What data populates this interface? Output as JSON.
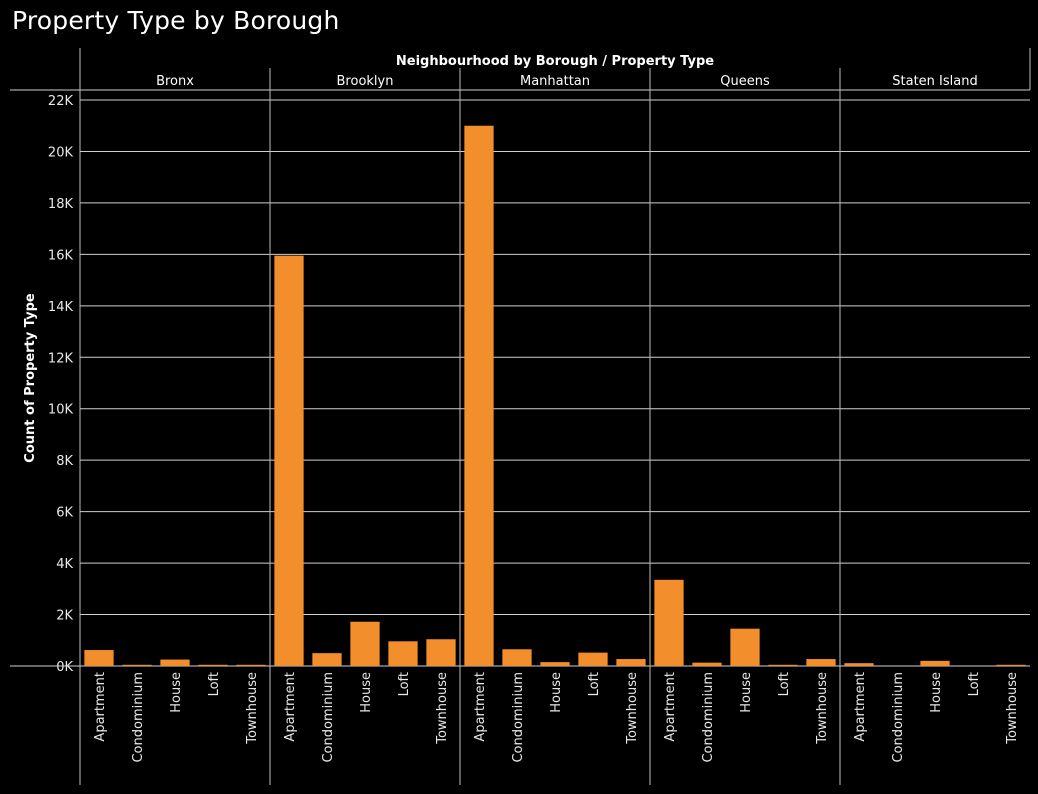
{
  "page": {
    "title": "Property Type by Borough"
  },
  "chart_data": {
    "type": "bar",
    "title": "Property Type by Borough",
    "column_header": "Neighbourhood by Borough  /  Property Type",
    "ylabel": "Count of Property Type",
    "ylim": [
      0,
      22000
    ],
    "yticks": [
      0,
      2000,
      4000,
      6000,
      8000,
      10000,
      12000,
      14000,
      16000,
      18000,
      20000,
      22000
    ],
    "ytick_labels": [
      "0K",
      "2K",
      "4K",
      "6K",
      "8K",
      "10K",
      "12K",
      "14K",
      "16K",
      "18K",
      "20K",
      "22K"
    ],
    "bar_color": "#f28e2b",
    "grid": true,
    "categories": [
      "Apartment",
      "Condominium",
      "House",
      "Loft",
      "Townhouse"
    ],
    "groups": [
      {
        "name": "Bronx",
        "values": [
          620,
          40,
          250,
          10,
          40
        ]
      },
      {
        "name": "Brooklyn",
        "values": [
          15950,
          500,
          1720,
          960,
          1040
        ]
      },
      {
        "name": "Manhattan",
        "values": [
          21000,
          650,
          150,
          520,
          270
        ]
      },
      {
        "name": "Queens",
        "values": [
          3350,
          130,
          1450,
          40,
          270
        ]
      },
      {
        "name": "Staten Island",
        "values": [
          110,
          0,
          200,
          0,
          30
        ]
      }
    ]
  }
}
